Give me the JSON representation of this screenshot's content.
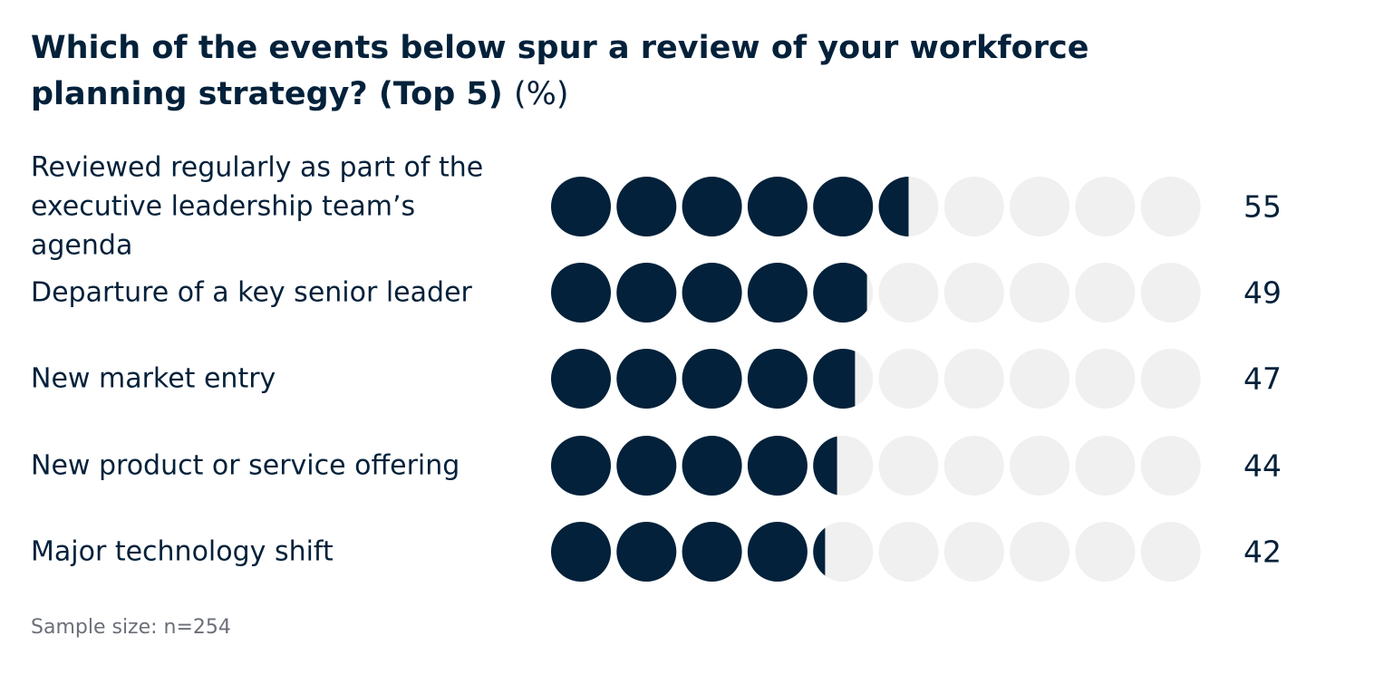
{
  "chart_data": {
    "type": "pictogram",
    "title": "Which of the events below spur a review of your workforce planning strategy? (Top 5)",
    "unit": "(%)",
    "categories": [
      "Reviewed regularly as part of the executive leadership team’s agenda",
      "Departure of a key senior leader",
      "New market entry",
      "New product or service offering",
      "Major technology shift"
    ],
    "values": [
      55,
      49,
      47,
      44,
      42
    ],
    "xlim": [
      0,
      100
    ],
    "color": "#03213a",
    "background_color": "#f0f0f0",
    "footnote": "Sample size: n=254"
  }
}
